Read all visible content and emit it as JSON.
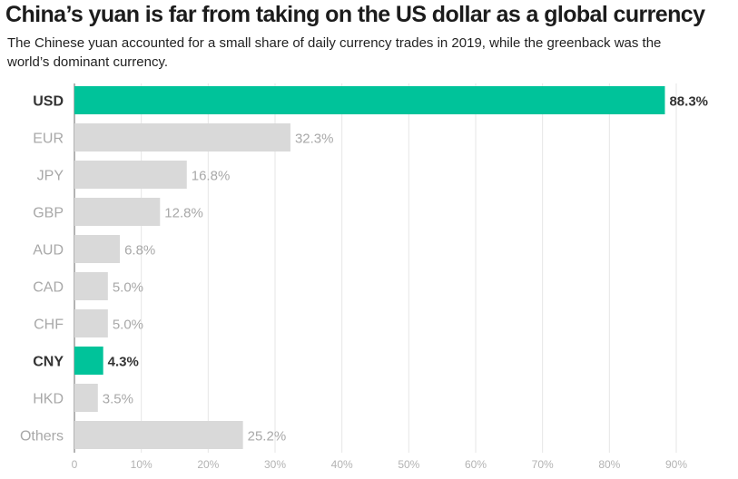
{
  "header": {
    "title": "China’s yuan is far from taking on the US dollar as a global currency",
    "subtitle": "The Chinese yuan accounted for a small share of daily currency trades in 2019, while the greenback was the world’s dominant currency."
  },
  "colors": {
    "highlight": "#00c39a",
    "bar": "#d9d9d9",
    "highlight_label": "#333333",
    "muted_label": "#a8a8a8",
    "grid": "#e6e6e6"
  },
  "chart_data": {
    "type": "bar",
    "orientation": "horizontal",
    "title": "China’s yuan is far from taking on the US dollar as a global currency",
    "subtitle": "The Chinese yuan accounted for a small share of daily currency trades in 2019, while the greenback was the world’s dominant currency.",
    "categories": [
      "USD",
      "EUR",
      "JPY",
      "GBP",
      "AUD",
      "CAD",
      "CHF",
      "CNY",
      "HKD",
      "Others"
    ],
    "values": [
      88.3,
      32.3,
      16.8,
      12.8,
      6.8,
      5.0,
      5.0,
      4.3,
      3.5,
      25.2
    ],
    "value_labels": [
      "88.3%",
      "32.3%",
      "16.8%",
      "12.8%",
      "6.8%",
      "5.0%",
      "5.0%",
      "4.3%",
      "3.5%",
      "25.2%"
    ],
    "highlighted": [
      "USD",
      "CNY"
    ],
    "xlim": [
      0,
      90
    ],
    "xticks": [
      0,
      10,
      20,
      30,
      40,
      50,
      60,
      70,
      80,
      90
    ],
    "xtick_labels": [
      "0",
      "10%",
      "20%",
      "30%",
      "40%",
      "50%",
      "60%",
      "70%",
      "80%",
      "90%"
    ],
    "xlabel": "",
    "ylabel": "",
    "grid": true
  }
}
